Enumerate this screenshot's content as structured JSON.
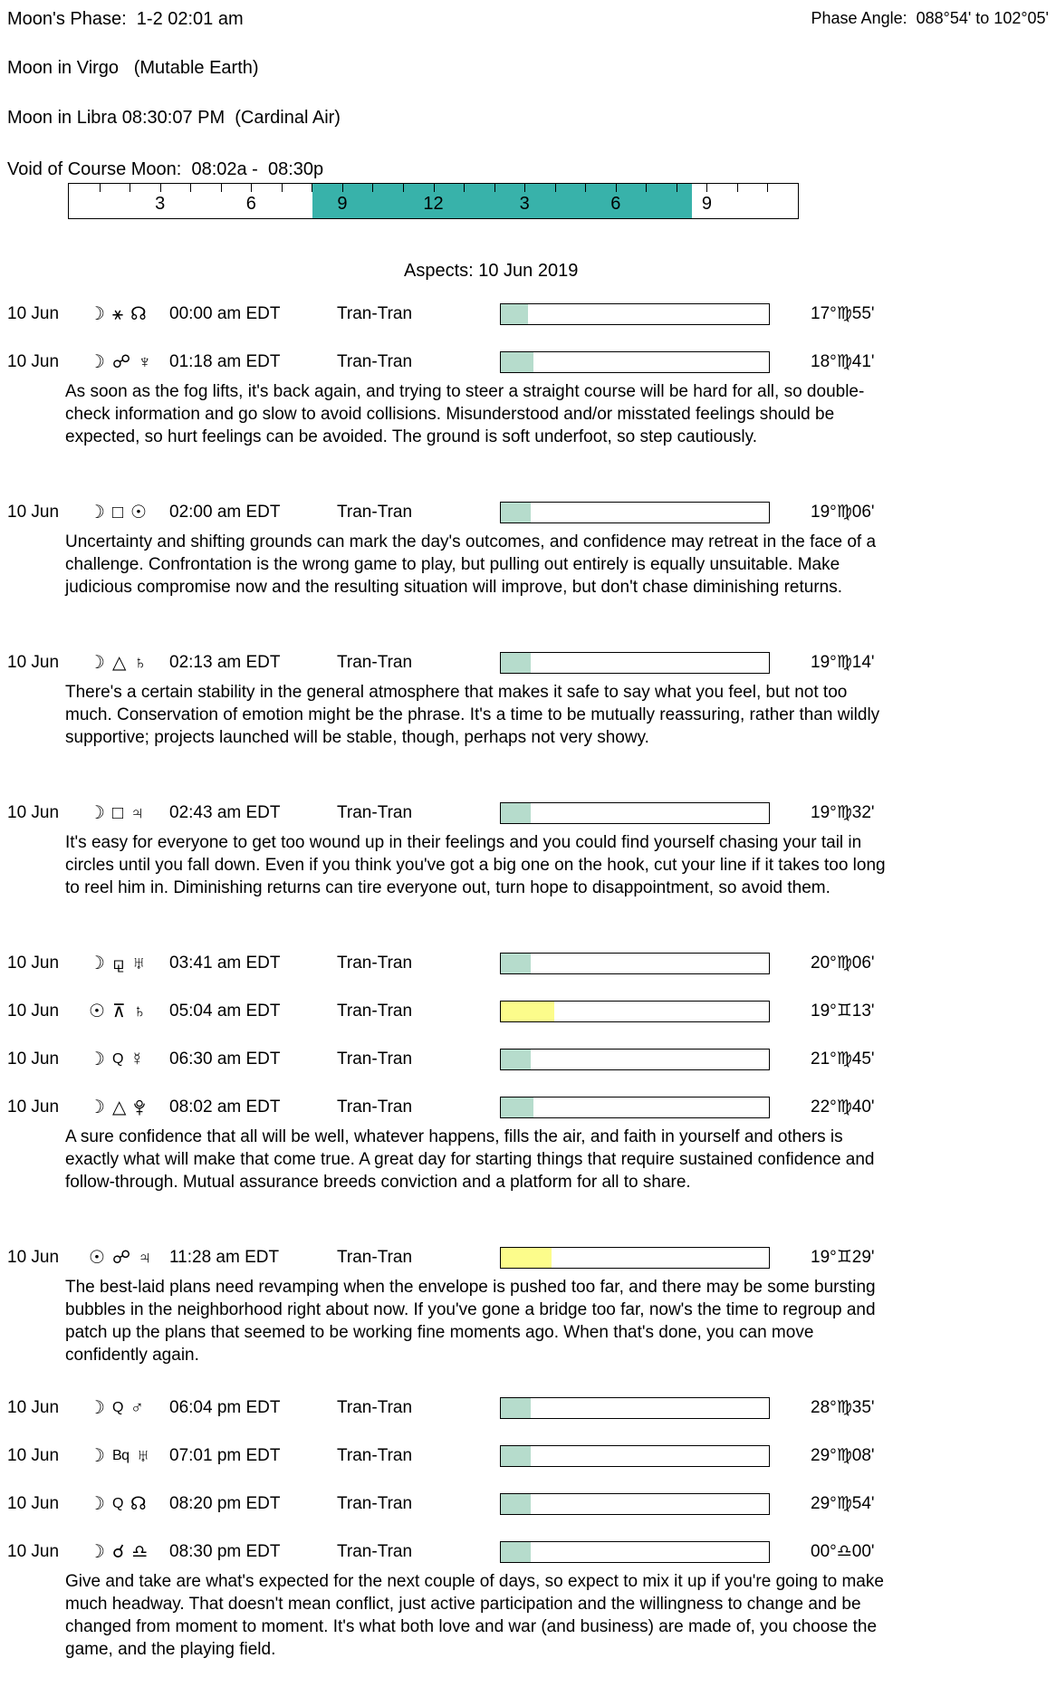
{
  "header": {
    "moons_phase": "Moon's Phase:  1-2 02:01 am",
    "phase_angle": "Phase Angle:  088°54' to 102°05'",
    "moon_in": "Moon in Virgo   (Mutable Earth)",
    "moon_ingress": "Moon in Libra 08:30:07 PM  (Cardinal Air)",
    "void_of_course": "Void of Course Moon:  08:02a -  08:30p"
  },
  "timeline": {
    "hours_total": 24,
    "hour_labels": [
      {
        "text": "3",
        "hour": 3
      },
      {
        "text": "6",
        "hour": 6
      },
      {
        "text": "9",
        "hour": 9
      },
      {
        "text": "12",
        "hour": 12
      },
      {
        "text": "3",
        "hour": 15
      },
      {
        "text": "6",
        "hour": 18
      },
      {
        "text": "9",
        "hour": 21
      }
    ],
    "voc_start_hour": 8.03,
    "voc_end_hour": 20.5,
    "band_color": "#38b2aa"
  },
  "aspects": {
    "title": "Aspects: 10 Jun 2019",
    "colors": {
      "teal": "#b6dccc",
      "yellow": "#fcfc8b"
    },
    "rows": [
      {
        "date": "10 Jun",
        "symbols": [
          {
            "ch": "☽",
            "name": "moon-icon"
          },
          {
            "ch": "⚹",
            "name": "sextile-icon"
          },
          {
            "ch": "☊",
            "name": "north-node-icon"
          }
        ],
        "time": "00:00 am EDT",
        "label": "Tran-Tran",
        "fill_pct": 10,
        "fill": "teal",
        "degree": "17°♍55'",
        "note": ""
      },
      {
        "date": "10 Jun",
        "symbols": [
          {
            "ch": "☽",
            "name": "moon-icon"
          },
          {
            "ch": "☍",
            "name": "opposition-icon"
          },
          {
            "ch": "♆",
            "name": "neptune-icon"
          }
        ],
        "time": "01:18 am EDT",
        "label": "Tran-Tran",
        "fill_pct": 12,
        "fill": "teal",
        "degree": "18°♍41'",
        "note": "As soon as the fog lifts, it's back again, and trying to steer a straight course will be hard for all, so double-check information and go slow to avoid collisions. Misunderstood and/or misstated feelings should be expected, so hurt feelings can be avoided. The ground is soft underfoot, so step cautiously."
      },
      {
        "date": "10 Jun",
        "symbols": [
          {
            "ch": "☽",
            "name": "moon-icon"
          },
          {
            "ch": "□",
            "name": "square-icon"
          },
          {
            "ch": "☉",
            "name": "sun-icon"
          }
        ],
        "time": "02:00 am EDT",
        "label": "Tran-Tran",
        "fill_pct": 11,
        "fill": "teal",
        "degree": "19°♍06'",
        "note": "Uncertainty and shifting grounds can mark the day's outcomes, and confidence may retreat in the face of a challenge. Confrontation is the wrong game to play, but pulling out entirely is equally unsuitable. Make judicious compromise now and the resulting situation will improve, but don't chase diminishing returns."
      },
      {
        "date": "10 Jun",
        "symbols": [
          {
            "ch": "☽",
            "name": "moon-icon"
          },
          {
            "ch": "△",
            "name": "trine-icon"
          },
          {
            "ch": "♄",
            "name": "saturn-icon"
          }
        ],
        "time": "02:13 am EDT",
        "label": "Tran-Tran",
        "fill_pct": 11,
        "fill": "teal",
        "degree": "19°♍14'",
        "note": "There's a certain stability in the general atmosphere that makes it safe to say what you feel, but not too much. Conservation of emotion might be the phrase. It's a time to be mutually reassuring, rather than wildly supportive; projects launched will be stable, though, perhaps not very showy."
      },
      {
        "date": "10 Jun",
        "symbols": [
          {
            "ch": "☽",
            "name": "moon-icon"
          },
          {
            "ch": "□",
            "name": "square-icon"
          },
          {
            "ch": "♃",
            "name": "jupiter-icon"
          }
        ],
        "time": "02:43 am EDT",
        "label": "Tran-Tran",
        "fill_pct": 11,
        "fill": "teal",
        "degree": "19°♍32'",
        "note": "It's easy for everyone to get too wound up in their feelings and you could find yourself chasing your tail in circles until you fall down. Even if you think you've got a big one on the hook, cut your line if it takes too long to reel him in. Diminishing returns can tire everyone out, turn hope to disappointment, so avoid them."
      },
      {
        "date": "10 Jun",
        "symbols": [
          {
            "ch": "☽",
            "name": "moon-icon"
          },
          {
            "ch": "⚼",
            "name": "sesquiquadrate-icon"
          },
          {
            "ch": "♅",
            "name": "uranus-icon"
          }
        ],
        "time": "03:41 am EDT",
        "label": "Tran-Tran",
        "fill_pct": 11,
        "fill": "teal",
        "degree": "20°♍06'",
        "note": ""
      },
      {
        "date": "10 Jun",
        "symbols": [
          {
            "ch": "☉",
            "name": "sun-icon"
          },
          {
            "ch": "⊼",
            "name": "quincunx-icon"
          },
          {
            "ch": "♄",
            "name": "saturn-icon"
          }
        ],
        "time": "05:04 am EDT",
        "label": "Tran-Tran",
        "fill_pct": 20,
        "fill": "yellow",
        "degree": "19°♊13'",
        "note": ""
      },
      {
        "date": "10 Jun",
        "symbols": [
          {
            "ch": "☽",
            "name": "moon-icon"
          },
          {
            "ch": "Q",
            "name": "quintile-icon",
            "small": true
          },
          {
            "ch": "☿",
            "name": "mercury-icon"
          }
        ],
        "time": "06:30 am EDT",
        "label": "Tran-Tran",
        "fill_pct": 11,
        "fill": "teal",
        "degree": "21°♍45'",
        "note": ""
      },
      {
        "date": "10 Jun",
        "symbols": [
          {
            "ch": "☽",
            "name": "moon-icon"
          },
          {
            "ch": "△",
            "name": "trine-icon"
          },
          {
            "ch": "",
            "name": "pluto-icon",
            "svg": "pluto"
          }
        ],
        "time": "08:02 am EDT",
        "label": "Tran-Tran",
        "fill_pct": 12,
        "fill": "teal",
        "degree": "22°♍40'",
        "note": "A sure confidence that all will be well, whatever happens, fills the air, and faith in yourself and others is exactly what will make that come true. A great day for starting things that require sustained confidence and follow-through. Mutual assurance breeds conviction and a platform for all to share."
      },
      {
        "date": "10 Jun",
        "symbols": [
          {
            "ch": "☉",
            "name": "sun-icon"
          },
          {
            "ch": "☍",
            "name": "opposition-icon"
          },
          {
            "ch": "♃",
            "name": "jupiter-icon"
          }
        ],
        "time": "11:28 am EDT",
        "label": "Tran-Tran",
        "fill_pct": 19,
        "fill": "yellow",
        "degree": "19°♊29'",
        "note": "The best-laid plans need revamping when the envelope is pushed too far, and there may be some bursting bubbles in the neighborhood right about now. If you've gone a bridge too far, now's the time to regroup and patch up the plans that seemed to be working fine moments ago. When that's done, you can move confidently again."
      },
      {
        "date": "10 Jun",
        "symbols": [
          {
            "ch": "☽",
            "name": "moon-icon"
          },
          {
            "ch": "Q",
            "name": "quintile-icon",
            "small": true
          },
          {
            "ch": "♂",
            "name": "mars-icon"
          }
        ],
        "time": "06:04 pm EDT",
        "label": "Tran-Tran",
        "fill_pct": 11,
        "fill": "teal",
        "degree": "28°♍35'",
        "note": ""
      },
      {
        "date": "10 Jun",
        "symbols": [
          {
            "ch": "☽",
            "name": "moon-icon"
          },
          {
            "ch": "Bq",
            "name": "biquintile-icon",
            "small": true
          },
          {
            "ch": "♅",
            "name": "uranus-icon"
          }
        ],
        "time": "07:01 pm EDT",
        "label": "Tran-Tran",
        "fill_pct": 11,
        "fill": "teal",
        "degree": "29°♍08'",
        "note": ""
      },
      {
        "date": "10 Jun",
        "symbols": [
          {
            "ch": "☽",
            "name": "moon-icon"
          },
          {
            "ch": "Q",
            "name": "quintile-icon",
            "small": true
          },
          {
            "ch": "☊",
            "name": "north-node-icon"
          }
        ],
        "time": "08:20 pm EDT",
        "label": "Tran-Tran",
        "fill_pct": 11,
        "fill": "teal",
        "degree": "29°♍54'",
        "note": ""
      },
      {
        "date": "10 Jun",
        "symbols": [
          {
            "ch": "☽",
            "name": "moon-icon"
          },
          {
            "ch": "☌",
            "name": "conjunction-icon"
          },
          {
            "ch": "♎",
            "name": "libra-icon"
          }
        ],
        "time": "08:30 pm EDT",
        "label": "Tran-Tran",
        "fill_pct": 11,
        "fill": "teal",
        "degree": "00°♎00'",
        "note": "Give and take are what's expected for the next couple of days, so expect to mix it up if you're going to make much headway. That doesn't mean conflict, just active participation and the willingness to change and be changed from moment to moment. It's what both love and war (and business) are made of, you choose the game, and the playing field."
      }
    ]
  }
}
